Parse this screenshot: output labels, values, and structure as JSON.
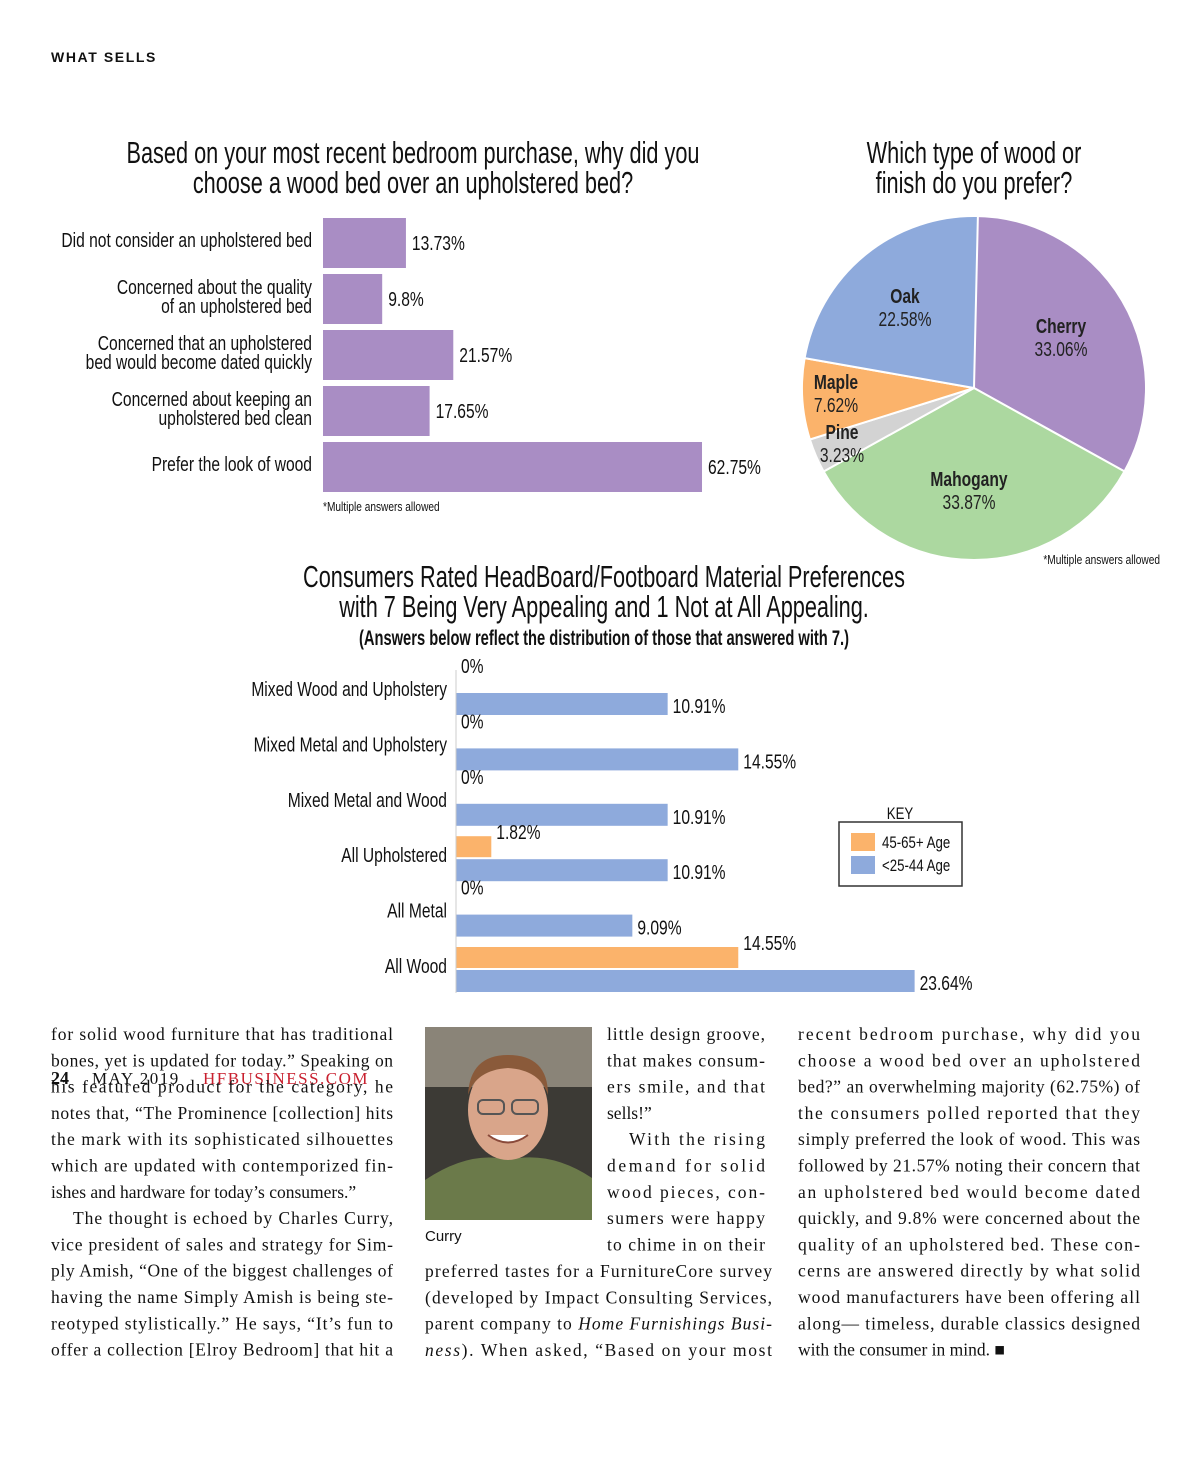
{
  "header": {
    "section": "WHAT SELLS"
  },
  "chart_data": [
    {
      "type": "bar",
      "orientation": "horizontal",
      "title": [
        "Based on your most recent bedroom purchase, why did you",
        "choose a wood bed over an upholstered bed?"
      ],
      "categories": [
        "Did not consider an upholstered bed",
        [
          "Concerned about the quality",
          "of an upholstered bed"
        ],
        [
          "Concerned that an upholstered",
          "bed would become dated quickly"
        ],
        [
          "Concerned about keeping an",
          "upholstered bed clean"
        ],
        "Prefer the look of wood"
      ],
      "values": [
        13.73,
        9.8,
        21.57,
        17.65,
        62.75
      ],
      "value_labels": [
        "13.73%",
        "9.8%",
        "21.57%",
        "17.65%",
        "62.75%"
      ],
      "color": "#a98dc4",
      "footnote": "*Multiple answers allowed"
    },
    {
      "type": "pie",
      "title": [
        "Which type of wood or",
        "finish do you prefer?"
      ],
      "categories": [
        "Cherry",
        "Mahogany",
        "Pine",
        "Maple",
        "Oak"
      ],
      "values": [
        33.06,
        33.87,
        3.23,
        7.62,
        22.58
      ],
      "value_labels": [
        "33.06%",
        "33.87%",
        "3.23%",
        "7.62%",
        "22.58%"
      ],
      "colors": [
        "#a98dc4",
        "#acd8a0",
        "#d3d3d3",
        "#fbb36b",
        "#8eaadc"
      ],
      "footnote": "*Multiple answers allowed"
    },
    {
      "type": "grouped_bar",
      "orientation": "horizontal",
      "title": [
        "Consumers Rated HeadBoard/Footboard Material Preferences",
        "with 7 Being Very Appealing and 1 Not at All Appealing."
      ],
      "subtitle": "(Answers below reflect the distribution of those that answered with 7.)",
      "categories": [
        "Mixed Wood and Upholstery",
        "Mixed Metal and Upholstery",
        "Mixed Metal and Wood",
        "All Upholstered",
        "All Metal",
        "All Wood"
      ],
      "series": [
        {
          "name": "45-65+ Age",
          "color": "#fbb36b",
          "values": [
            0,
            0,
            0,
            1.82,
            0,
            14.55
          ],
          "value_labels": [
            "0%",
            "0%",
            "0%",
            "1.82%",
            "0%",
            "14.55%"
          ]
        },
        {
          "name": "<25-44 Age",
          "color": "#8eaadc",
          "values": [
            10.91,
            14.55,
            10.91,
            10.91,
            9.09,
            23.64
          ],
          "value_labels": [
            "10.91%",
            "14.55%",
            "10.91%",
            "10.91%",
            "9.09%",
            "23.64%"
          ]
        }
      ],
      "legend_title": "KEY",
      "legend": "right"
    }
  ],
  "article": {
    "col1": [
      "for solid wood furniture that has traditional",
      "bones, yet is updated for today.” Speaking on",
      "his featured product for the category, he",
      "notes that, “The Prominence [collection] hits",
      "the mark with its sophisticated silhouettes",
      "which are updated with contemporized fin-",
      "ishes and hardware for today’s consumers.”",
      "The thought is echoed by Charles Curry,",
      "vice president of sales and strategy for Sim-",
      "ply Amish, “One of the biggest challenges of",
      "having the name Simply Amish is being ste-",
      "reotyped stylistically.” He says, “It’s fun to",
      "offer a collection [Elroy Bedroom] that hit a"
    ],
    "photo_caption": "Curry",
    "col2_side": [
      "little design groove,",
      "that makes consum-",
      "ers smile, and that",
      "sells!”",
      "With the rising",
      "demand for solid",
      "wood pieces, con-",
      "sumers were happy",
      "to chime in on their"
    ],
    "col2_bottom": [
      "preferred tastes for a FurnitureCore survey",
      "(developed by Impact Consulting Services,",
      [
        "parent company to ",
        {
          "italic": "Home Furnishings Busi-"
        }
      ],
      [
        {
          "italic": "ness"
        },
        "). When asked, “Based on your most"
      ]
    ],
    "col3": [
      "recent bedroom purchase, why did you",
      "choose a wood bed over an upholstered",
      "bed?” an overwhelming majority (62.75%) of",
      "the consumers polled reported that they",
      "simply preferred the look of wood. This was",
      "followed by 21.57% noting their concern that",
      "an upholstered bed would become dated",
      "quickly, and 9.8% were concerned about the",
      "quality of an upholstered bed. These con-",
      "cerns are answered directly by what solid",
      "wood manufacturers have been offering all",
      "along— timeless, durable classics designed",
      "with the consumer in mind. ■"
    ]
  },
  "footer": {
    "page": "24",
    "date": "MAY 2019",
    "site": "HFBUSINESS.COM"
  }
}
